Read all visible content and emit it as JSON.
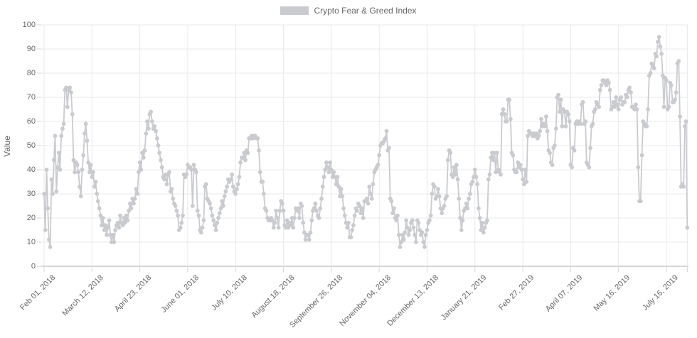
{
  "legend": {
    "label": "Crypto Fear & Greed Index"
  },
  "y_axis": {
    "title": "Value",
    "tick_labels": [
      "0",
      "10",
      "20",
      "30",
      "40",
      "50",
      "60",
      "70",
      "80",
      "90",
      "100"
    ]
  },
  "x_axis": {
    "tick_labels": [
      "Feb 01, 2018",
      "March 12, 2018",
      "April 23, 2018",
      "June 01, 2018",
      "July 10, 2018",
      "August 18, 2018",
      "September 26, 2018",
      "November 04, 2018",
      "December 13, 2018",
      "January 21, 2019",
      "Feb 27, 2019",
      "April 07, 2019",
      "May 16, 2019",
      "July 16, 2019"
    ]
  },
  "colors": {
    "series": "#c9cbcf",
    "grid": "#e9e9e9",
    "axis_line": "#ababab",
    "tick_mark": "#d6d6d6",
    "text": "#666666",
    "background": "#ffffff"
  },
  "chart_data": {
    "type": "line",
    "title": "Crypto Fear & Greed Index",
    "xlabel": "",
    "ylabel": "Value",
    "ylim": [
      0,
      100
    ],
    "grid": true,
    "legend_position": "top",
    "point_style": "circle",
    "series_name": "Crypto Fear & Greed Index",
    "x_tick_labels": [
      "Feb 01, 2018",
      "March 12, 2018",
      "April 23, 2018",
      "June 01, 2018",
      "July 10, 2018",
      "August 18, 2018",
      "September 26, 2018",
      "November 04, 2018",
      "December 13, 2018",
      "January 21, 2019",
      "Feb 27, 2019",
      "April 07, 2019",
      "May 16, 2019",
      "July 16, 2019"
    ],
    "x_tick_every_n_points": 39,
    "values": [
      30,
      15,
      40,
      24,
      11,
      8,
      36,
      30,
      44,
      54,
      31,
      41,
      47,
      40,
      54,
      57,
      59,
      73,
      74,
      66,
      73,
      74,
      72,
      63,
      44,
      39,
      43,
      42,
      39,
      33,
      29,
      40,
      46,
      55,
      59,
      52,
      43,
      39,
      42,
      37,
      39,
      33,
      35,
      30,
      27,
      24,
      21,
      17,
      20,
      15,
      17,
      13,
      16,
      19,
      13,
      10,
      13,
      10,
      15,
      17,
      18,
      16,
      21,
      18,
      17,
      20,
      18,
      21,
      19,
      23,
      26,
      24,
      28,
      26,
      28,
      32,
      30,
      39,
      43,
      40,
      47,
      45,
      48,
      55,
      60,
      57,
      63,
      64,
      60,
      57,
      58,
      56,
      53,
      50,
      47,
      44,
      41,
      37,
      36,
      38,
      34,
      38,
      39,
      31,
      32,
      28,
      26,
      25,
      23,
      21,
      15,
      16,
      18,
      21,
      38,
      37,
      38,
      42,
      41,
      41,
      40,
      25,
      42,
      40,
      39,
      23,
      21,
      15,
      14,
      16,
      19,
      33,
      34,
      28,
      27,
      26,
      24,
      21,
      19,
      17,
      15,
      18,
      20,
      22,
      24,
      27,
      25,
      29,
      31,
      33,
      36,
      35,
      36,
      38,
      33,
      31,
      30,
      32,
      34,
      37,
      43,
      45,
      45,
      47,
      44,
      48,
      47,
      53,
      53,
      54,
      53,
      54,
      54,
      53,
      53,
      48,
      39,
      35,
      35,
      30,
      24,
      23,
      20,
      19,
      19,
      20,
      19,
      16,
      18,
      23,
      20,
      16,
      23,
      27,
      26,
      23,
      17,
      16,
      19,
      16,
      18,
      17,
      20,
      16,
      20,
      24,
      23,
      24,
      20,
      26,
      25,
      18,
      14,
      11,
      13,
      13,
      11,
      14,
      19,
      23,
      24,
      26,
      23,
      21,
      20,
      24,
      28,
      33,
      37,
      40,
      43,
      41,
      39,
      43,
      40,
      37,
      39,
      37,
      34,
      37,
      33,
      29,
      32,
      29,
      24,
      21,
      18,
      16,
      18,
      12,
      12,
      15,
      17,
      21,
      24,
      23,
      26,
      25,
      22,
      24,
      20,
      27,
      27,
      28,
      26,
      33,
      30,
      28,
      34,
      39,
      40,
      41,
      42,
      46,
      50,
      51,
      51,
      52,
      53,
      56,
      48,
      49,
      28,
      27,
      22,
      24,
      20,
      19,
      21,
      13,
      8,
      10,
      13,
      11,
      14,
      19,
      16,
      13,
      15,
      18,
      19,
      16,
      13,
      10,
      19,
      18,
      15,
      13,
      14,
      10,
      8,
      13,
      15,
      18,
      19,
      21,
      30,
      34,
      33,
      28,
      29,
      32,
      29,
      24,
      22,
      24,
      25,
      28,
      29,
      44,
      48,
      47,
      38,
      37,
      41,
      38,
      42,
      36,
      28,
      20,
      15,
      19,
      23,
      24,
      26,
      24,
      28,
      30,
      34,
      35,
      37,
      40,
      37,
      34,
      24,
      20,
      15,
      18,
      14,
      16,
      18,
      19,
      36,
      38,
      45,
      47,
      44,
      47,
      39,
      47,
      40,
      39,
      38,
      63,
      65,
      63,
      60,
      60,
      69,
      69,
      61,
      47,
      46,
      40,
      39,
      39,
      43,
      41,
      42,
      40,
      36,
      34,
      40,
      35,
      54,
      56,
      55,
      55,
      54,
      55,
      54,
      55,
      53,
      54,
      56,
      61,
      58,
      59,
      58,
      62,
      56,
      48,
      47,
      43,
      42,
      49,
      50,
      57,
      70,
      71,
      64,
      69,
      58,
      65,
      64,
      58,
      64,
      63,
      60,
      42,
      41,
      49,
      48,
      59,
      60,
      59,
      60,
      59,
      67,
      68,
      59,
      60,
      43,
      42,
      41,
      49,
      58,
      59,
      64,
      65,
      68,
      67,
      66,
      73,
      75,
      77,
      77,
      76,
      75,
      77,
      76,
      73,
      65,
      66,
      68,
      66,
      70,
      67,
      65,
      69,
      70,
      67,
      68,
      68,
      71,
      70,
      73,
      74,
      72,
      66,
      66,
      65,
      67,
      65,
      41,
      27,
      27,
      46,
      60,
      59,
      58,
      58,
      65,
      79,
      80,
      84,
      83,
      82,
      88,
      87,
      93,
      95,
      91,
      88,
      79,
      66,
      78,
      77,
      65,
      66,
      76,
      75,
      68,
      68,
      69,
      72,
      84,
      85,
      62,
      33,
      34,
      33,
      58,
      60,
      16
    ]
  }
}
